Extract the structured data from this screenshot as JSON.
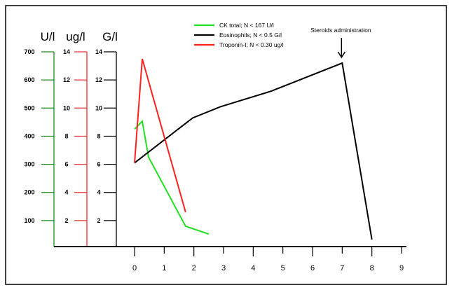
{
  "chart_data": {
    "type": "line",
    "xlabel": "",
    "x_ticks": [
      "0",
      "1",
      "2",
      "3",
      "4",
      "5",
      "6",
      "7",
      "8",
      "9"
    ],
    "xlim": [
      0,
      9
    ],
    "axes": [
      {
        "unit": "U/l",
        "ticks": [
          "100",
          "200",
          "300",
          "400",
          "500",
          "600",
          "700"
        ],
        "ylim": [
          0,
          700
        ],
        "color": "#1a8a1a"
      },
      {
        "unit": "ug/l",
        "ticks": [
          "2",
          "4",
          "6",
          "8",
          "10",
          "12",
          "14"
        ],
        "ylim": [
          0,
          14
        ],
        "color": "#e83030"
      },
      {
        "unit": "G/l",
        "ticks": [
          "2",
          "4",
          "6",
          "8",
          "10",
          "12",
          "14"
        ],
        "ylim": [
          0,
          14
        ],
        "color": "#000000"
      }
    ],
    "series": [
      {
        "name": "CK total; N < 167 U/l",
        "axis": 0,
        "color": "#22e022",
        "points": [
          [
            0,
            425
          ],
          [
            0.26,
            453
          ],
          [
            0.47,
            326
          ],
          [
            1.72,
            80
          ],
          [
            2.5,
            52
          ]
        ]
      },
      {
        "name": "Eosinophils; N < 0.5 G/l",
        "axis": 2,
        "color": "#000000",
        "points": [
          [
            0,
            6.1
          ],
          [
            1.96,
            9.3
          ],
          [
            2.9,
            10.1
          ],
          [
            4.6,
            11.2
          ],
          [
            7.0,
            13.2
          ],
          [
            8.0,
            0.65
          ]
        ]
      },
      {
        "name": "Troponin-I; N < 0.30 ug/l",
        "axis": 1,
        "color": "#ff2020",
        "points": [
          [
            0,
            6.1
          ],
          [
            0.26,
            13.5
          ],
          [
            1.72,
            2.6
          ]
        ]
      }
    ],
    "annotations": [
      {
        "text": "Steroids administration",
        "x": 7.0
      }
    ],
    "legend": "top-center"
  }
}
